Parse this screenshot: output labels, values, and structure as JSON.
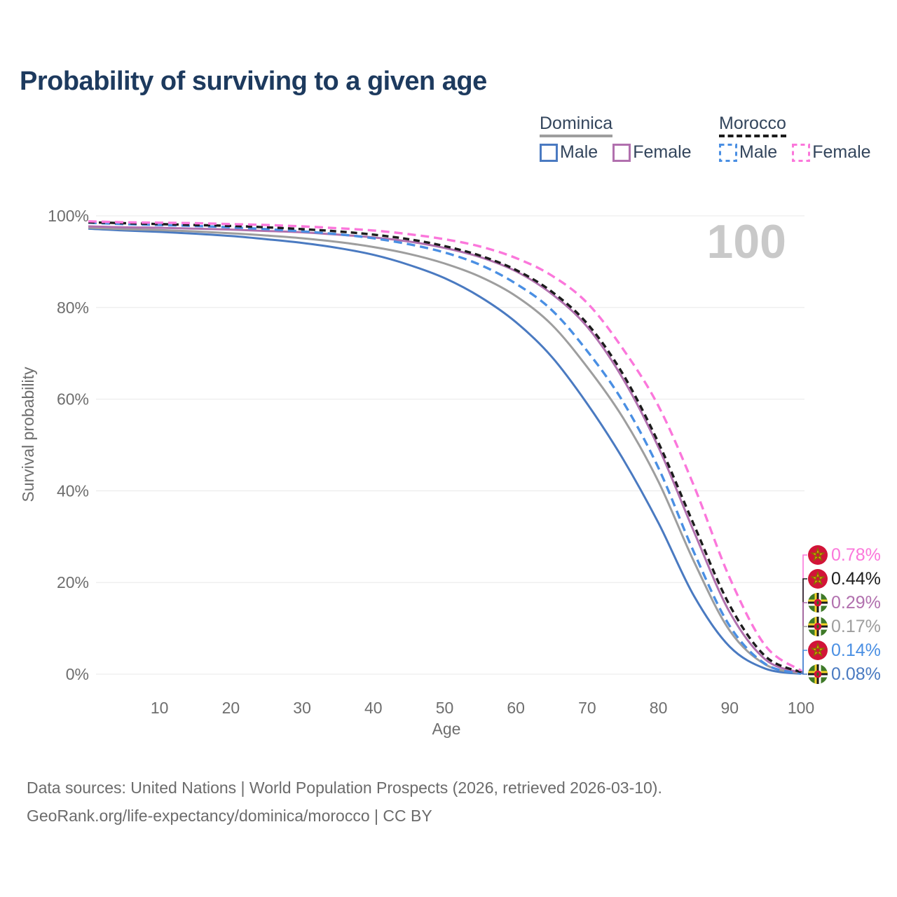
{
  "title": "Probability of surviving to a given age",
  "watermark_age": "100",
  "colors": {
    "title": "#1d3a5e",
    "axis_text": "#6e6e6e",
    "gridline": "#e8e8e8",
    "watermark": "#c9c9c9",
    "footer_text": "#6b6b6b",
    "dominica_male": "#4a7ac1",
    "dominica_both": "#9e9e9e",
    "dominica_female": "#b170ae",
    "morocco_male": "#4a8fe3",
    "morocco_both": "#1c1c1c",
    "morocco_female": "#fb77db"
  },
  "legend": {
    "groups": [
      {
        "label": "Dominica",
        "line_color": "#9e9e9e",
        "line_style": "solid",
        "items": [
          {
            "label": "Male",
            "color": "#4a7ac1",
            "style": "solid"
          },
          {
            "label": "Female",
            "color": "#b170ae",
            "style": "solid"
          }
        ]
      },
      {
        "label": "Morocco",
        "line_color": "#1c1c1c",
        "line_style": "dashed",
        "items": [
          {
            "label": "Male",
            "color": "#4a8fe3",
            "style": "dashed"
          },
          {
            "label": "Female",
            "color": "#fb77db",
            "style": "dashed"
          }
        ]
      }
    ]
  },
  "chart_data": {
    "type": "line",
    "title": "Probability of surviving to a given age",
    "xlabel": "Age",
    "ylabel": "Survival probability",
    "xlim": [
      0,
      100
    ],
    "ylim": [
      0,
      100
    ],
    "grid": "horizontal-only",
    "legend_position": "top-right",
    "x_tick_labels": [
      "10",
      "20",
      "30",
      "40",
      "50",
      "60",
      "70",
      "80",
      "90",
      "100"
    ],
    "y_tick_labels": [
      "100%",
      "80%",
      "60%",
      "40%",
      "20%",
      "0%"
    ],
    "x": [
      0,
      5,
      10,
      15,
      20,
      25,
      30,
      35,
      40,
      45,
      50,
      55,
      60,
      65,
      70,
      75,
      80,
      85,
      90,
      95,
      100
    ],
    "series": [
      {
        "id": "dominica-male",
        "country": "Dominica",
        "sex": "Male",
        "color": "#4a7ac1",
        "style": "solid",
        "dash_pattern": "",
        "end_label": "0.08%",
        "flag": "dominica",
        "values": [
          97.2,
          96.8,
          96.5,
          96.1,
          95.6,
          94.9,
          94.1,
          93.0,
          91.5,
          89.3,
          86.4,
          82.3,
          76.8,
          69.3,
          59.0,
          47.0,
          33.0,
          17.0,
          6.0,
          1.2,
          0.08
        ]
      },
      {
        "id": "dominica-both",
        "country": "Dominica",
        "sex": "Both sexes",
        "color": "#9e9e9e",
        "style": "solid",
        "dash_pattern": "",
        "end_label": "0.17%",
        "flag": "dominica",
        "values": [
          97.4,
          97.1,
          96.9,
          96.6,
          96.2,
          95.7,
          95.1,
          94.3,
          93.2,
          91.7,
          89.6,
          86.7,
          82.5,
          76.3,
          67.0,
          56.0,
          42.0,
          24.5,
          9.5,
          2.1,
          0.17
        ]
      },
      {
        "id": "dominica-female",
        "country": "Dominica",
        "sex": "Female",
        "color": "#b170ae",
        "style": "solid",
        "dash_pattern": "",
        "end_label": "0.29%",
        "flag": "dominica",
        "values": [
          97.7,
          97.5,
          97.4,
          97.2,
          97.0,
          96.7,
          96.4,
          95.9,
          95.3,
          94.4,
          93.0,
          91.0,
          87.9,
          83.0,
          75.8,
          64.5,
          49.5,
          31.0,
          13.5,
          3.2,
          0.29
        ]
      },
      {
        "id": "morocco-male",
        "country": "Morocco",
        "sex": "Male",
        "color": "#4a8fe3",
        "style": "dashed",
        "dash_pattern": "12 7",
        "end_label": "0.14%",
        "flag": "morocco",
        "values": [
          98.5,
          98.2,
          98.0,
          97.8,
          97.5,
          97.1,
          96.6,
          96.0,
          95.1,
          93.8,
          92.0,
          89.3,
          85.2,
          79.5,
          70.5,
          59.5,
          45.0,
          26.5,
          10.5,
          2.2,
          0.14
        ]
      },
      {
        "id": "morocco-both",
        "country": "Morocco",
        "sex": "Both sexes",
        "color": "#1c1c1c",
        "style": "dashed",
        "dash_pattern": "9 6",
        "end_label": "0.44%",
        "flag": "morocco",
        "values": [
          98.6,
          98.4,
          98.2,
          98.0,
          97.8,
          97.5,
          97.1,
          96.6,
          95.9,
          94.9,
          93.4,
          91.3,
          88.2,
          83.5,
          76.5,
          65.5,
          50.5,
          32.5,
          15.0,
          3.9,
          0.44
        ]
      },
      {
        "id": "morocco-female",
        "country": "Morocco",
        "sex": "Female",
        "color": "#fb77db",
        "style": "dashed",
        "dash_pattern": "12 7",
        "end_label": "0.78%",
        "flag": "morocco",
        "values": [
          98.8,
          98.6,
          98.5,
          98.4,
          98.2,
          98.0,
          97.7,
          97.3,
          96.8,
          96.0,
          94.9,
          93.3,
          90.8,
          87.0,
          81.0,
          71.0,
          58.5,
          41.0,
          21.0,
          6.2,
          0.78
        ]
      }
    ]
  },
  "footer": {
    "line1": "Data sources: United Nations | World Population Prospects (2026, retrieved 2026-03-10).",
    "line2": "GeoRank.org/life-expectancy/dominica/morocco | CC BY"
  }
}
